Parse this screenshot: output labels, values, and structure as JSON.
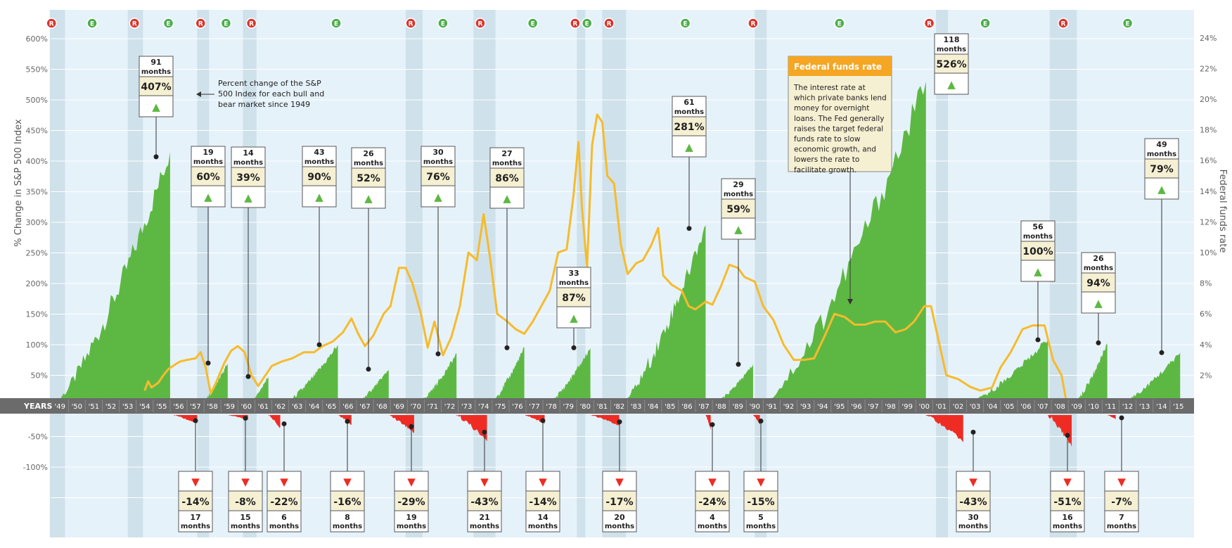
{
  "chart_data": {
    "type": "area",
    "xlabel": "YEARS",
    "ylabel": "% Change in S&P 500 Index",
    "y2label": "Federal funds rate",
    "ylim": [
      -150,
      630
    ],
    "y2lim": [
      0,
      24.9
    ],
    "y_ticks": [
      "600%",
      "550%",
      "500%",
      "450%",
      "400%",
      "350%",
      "300%",
      "250%",
      "200%",
      "150%",
      "100%",
      "50%",
      "-50%",
      "-100%"
    ],
    "y_tick_values": [
      600,
      550,
      500,
      450,
      400,
      350,
      300,
      250,
      200,
      150,
      100,
      50,
      -50,
      -100
    ],
    "y2_ticks": [
      "24%",
      "22%",
      "20%",
      "18%",
      "16%",
      "14%",
      "12%",
      "10%",
      "8%",
      "6%",
      "4%",
      "2%"
    ],
    "y2_tick_values": [
      24,
      22,
      20,
      18,
      16,
      14,
      12,
      10,
      8,
      6,
      4,
      2
    ],
    "x_ticks": [
      "'49",
      "'50",
      "'51",
      "'52",
      "'53",
      "'54",
      "'55",
      "'56",
      "'57",
      "'58",
      "'59",
      "'60",
      "'61",
      "'62",
      "'63",
      "'64",
      "'65",
      "'66",
      "'67",
      "'68",
      "'69",
      "'70",
      "'71",
      "'72",
      "'73",
      "'74",
      "'75",
      "'76",
      "'77",
      "'78",
      "'79",
      "'80",
      "'81",
      "'82",
      "'83",
      "'84",
      "'85",
      "'86",
      "'87",
      "'88",
      "'89",
      "'90",
      "'91",
      "'92",
      "'93",
      "'94",
      "'95",
      "'96",
      "'97",
      "'98",
      "'99",
      "'00",
      "'01",
      "'02",
      "'03",
      "'04",
      "'05",
      "'06",
      "'07",
      "'08",
      "'09",
      "'10",
      "'11",
      "'12",
      "'13",
      "'14",
      "'15"
    ],
    "recession_periods": [
      [
        1948.9,
        1949.8
      ],
      [
        1953.5,
        1954.4
      ],
      [
        1957.6,
        1958.3
      ],
      [
        1960.3,
        1961.1
      ],
      [
        1969.9,
        1970.9
      ],
      [
        1973.9,
        1975.2
      ],
      [
        1980.0,
        1980.5
      ],
      [
        1981.5,
        1982.9
      ],
      [
        1990.5,
        1991.2
      ],
      [
        2001.2,
        2001.9
      ],
      [
        2007.9,
        2009.5
      ]
    ],
    "economy_markers": [
      {
        "label": "R",
        "x": 1949.0
      },
      {
        "label": "E",
        "x": 1951.4
      },
      {
        "label": "R",
        "x": 1953.9
      },
      {
        "label": "E",
        "x": 1955.9
      },
      {
        "label": "R",
        "x": 1957.8
      },
      {
        "label": "E",
        "x": 1959.3
      },
      {
        "label": "R",
        "x": 1960.8
      },
      {
        "label": "E",
        "x": 1965.8
      },
      {
        "label": "R",
        "x": 1970.2
      },
      {
        "label": "E",
        "x": 1972.1
      },
      {
        "label": "R",
        "x": 1974.3
      },
      {
        "label": "E",
        "x": 1977.4
      },
      {
        "label": "R",
        "x": 1979.9
      },
      {
        "label": "E",
        "x": 1980.6
      },
      {
        "label": "R",
        "x": 1981.9
      },
      {
        "label": "E",
        "x": 1986.4
      },
      {
        "label": "R",
        "x": 1990.4
      },
      {
        "label": "E",
        "x": 1995.5
      },
      {
        "label": "R",
        "x": 2000.8
      },
      {
        "label": "E",
        "x": 2004.1
      },
      {
        "label": "R",
        "x": 2008.7
      },
      {
        "label": "E",
        "x": 2012.5
      }
    ],
    "bull_markets": [
      {
        "start": 1949.0,
        "end": 1956.0,
        "peak": 415,
        "marker": 407,
        "months": "91",
        "change": "407%"
      },
      {
        "start": 1957.7,
        "end": 1959.4,
        "peak": 70,
        "marker": 70,
        "months": "19",
        "change": "60%"
      },
      {
        "start": 1960.5,
        "end": 1961.8,
        "peak": 48,
        "marker": 48,
        "months": "14",
        "change": "39%"
      },
      {
        "start": 1962.5,
        "end": 1965.9,
        "peak": 100,
        "marker": 100,
        "months": "43",
        "change": "90%"
      },
      {
        "start": 1966.7,
        "end": 1968.9,
        "peak": 60,
        "marker": 60,
        "months": "26",
        "change": "52%"
      },
      {
        "start": 1970.4,
        "end": 1972.9,
        "peak": 85,
        "marker": 85,
        "months": "30",
        "change": "76%"
      },
      {
        "start": 1974.7,
        "end": 1976.9,
        "peak": 95,
        "marker": 95,
        "months": "27",
        "change": "86%"
      },
      {
        "start": 1978.1,
        "end": 1980.8,
        "peak": 95,
        "marker": 95,
        "months": "33",
        "change": "87%"
      },
      {
        "start": 1982.5,
        "end": 1987.6,
        "peak": 295,
        "marker": 290,
        "months": "61",
        "change": "281%"
      },
      {
        "start": 1987.9,
        "end": 1990.4,
        "peak": 68,
        "marker": 68,
        "months": "29",
        "change": "59%"
      },
      {
        "start": 1990.8,
        "end": 2000.6,
        "peak": 530,
        "marker": 520,
        "months": "118",
        "change": "526%"
      },
      {
        "start": 2002.8,
        "end": 2007.8,
        "peak": 110,
        "marker": 108,
        "months": "56",
        "change": "100%"
      },
      {
        "start": 2009.2,
        "end": 2011.3,
        "peak": 103,
        "marker": 103,
        "months": "26",
        "change": "94%"
      },
      {
        "start": 2011.8,
        "end": 2015.6,
        "peak": 87,
        "marker": 87,
        "months": "49",
        "change": "79%"
      }
    ],
    "bear_markets": [
      {
        "start": 1956.2,
        "end": 1957.6,
        "trough": -14,
        "months": "17",
        "change": "-14%"
      },
      {
        "start": 1959.4,
        "end": 1960.6,
        "trough": -8,
        "months": "15",
        "change": "-8%"
      },
      {
        "start": 1961.8,
        "end": 1962.5,
        "trough": -22,
        "months": "6",
        "change": "-22%"
      },
      {
        "start": 1965.9,
        "end": 1966.7,
        "trough": -16,
        "months": "8",
        "change": "-16%"
      },
      {
        "start": 1968.9,
        "end": 1970.4,
        "trough": -29,
        "months": "19",
        "change": "-29%"
      },
      {
        "start": 1972.9,
        "end": 1974.7,
        "trough": -43,
        "months": "21",
        "change": "-43%"
      },
      {
        "start": 1976.9,
        "end": 1978.1,
        "trough": -14,
        "months": "14",
        "change": "-14%"
      },
      {
        "start": 1980.8,
        "end": 1982.5,
        "trough": -17,
        "months": "20",
        "change": "-17%"
      },
      {
        "start": 1987.6,
        "end": 1987.9,
        "trough": -24,
        "months": "4",
        "change": "-24%"
      },
      {
        "start": 1990.4,
        "end": 1990.8,
        "trough": -15,
        "months": "5",
        "change": "-15%"
      },
      {
        "start": 2000.6,
        "end": 2002.8,
        "trough": -43,
        "months": "30",
        "change": "-43%"
      },
      {
        "start": 2007.8,
        "end": 2009.2,
        "trough": -51,
        "months": "16",
        "change": "-51%"
      },
      {
        "start": 2011.3,
        "end": 2011.8,
        "trough": -7,
        "months": "7",
        "change": "-7%"
      }
    ],
    "fed_funds_rate": [
      [
        1954.5,
        1.0
      ],
      [
        1954.7,
        1.6
      ],
      [
        1954.9,
        1.2
      ],
      [
        1955.3,
        1.5
      ],
      [
        1955.6,
        2.0
      ],
      [
        1955.9,
        2.4
      ],
      [
        1956.3,
        2.7
      ],
      [
        1956.6,
        2.9
      ],
      [
        1957.0,
        3.0
      ],
      [
        1957.5,
        3.1
      ],
      [
        1957.8,
        3.5
      ],
      [
        1958.1,
        2.5
      ],
      [
        1958.4,
        0.8
      ],
      [
        1958.7,
        1.5
      ],
      [
        1959.2,
        2.8
      ],
      [
        1959.6,
        3.6
      ],
      [
        1960.0,
        3.9
      ],
      [
        1960.4,
        3.5
      ],
      [
        1960.8,
        2.0
      ],
      [
        1961.2,
        1.3
      ],
      [
        1961.5,
        1.8
      ],
      [
        1962.0,
        2.6
      ],
      [
        1962.6,
        2.9
      ],
      [
        1963.2,
        3.1
      ],
      [
        1963.9,
        3.5
      ],
      [
        1964.5,
        3.5
      ],
      [
        1965.0,
        3.9
      ],
      [
        1965.6,
        4.2
      ],
      [
        1966.2,
        4.8
      ],
      [
        1966.7,
        5.7
      ],
      [
        1967.1,
        4.7
      ],
      [
        1967.5,
        3.9
      ],
      [
        1968.0,
        4.6
      ],
      [
        1968.6,
        6.0
      ],
      [
        1969.0,
        6.5
      ],
      [
        1969.5,
        9.0
      ],
      [
        1969.9,
        9.0
      ],
      [
        1970.3,
        8.0
      ],
      [
        1970.8,
        6.0
      ],
      [
        1971.2,
        3.8
      ],
      [
        1971.6,
        5.5
      ],
      [
        1972.1,
        3.3
      ],
      [
        1972.6,
        4.5
      ],
      [
        1973.1,
        6.5
      ],
      [
        1973.6,
        10.0
      ],
      [
        1974.1,
        9.5
      ],
      [
        1974.5,
        12.5
      ],
      [
        1974.9,
        9.5
      ],
      [
        1975.3,
        6.0
      ],
      [
        1975.9,
        5.5
      ],
      [
        1976.4,
        5.0
      ],
      [
        1976.9,
        4.7
      ],
      [
        1977.4,
        5.5
      ],
      [
        1977.9,
        6.5
      ],
      [
        1978.4,
        7.5
      ],
      [
        1978.9,
        10.0
      ],
      [
        1979.4,
        10.2
      ],
      [
        1979.8,
        13.7
      ],
      [
        1980.1,
        17.2
      ],
      [
        1980.3,
        13.0
      ],
      [
        1980.6,
        9.0
      ],
      [
        1980.9,
        17.0
      ],
      [
        1981.2,
        19.0
      ],
      [
        1981.5,
        18.5
      ],
      [
        1981.8,
        15.0
      ],
      [
        1982.2,
        14.5
      ],
      [
        1982.6,
        10.5
      ],
      [
        1983.0,
        8.6
      ],
      [
        1983.5,
        9.3
      ],
      [
        1983.9,
        9.5
      ],
      [
        1984.4,
        10.5
      ],
      [
        1984.8,
        11.6
      ],
      [
        1985.1,
        8.5
      ],
      [
        1985.6,
        7.9
      ],
      [
        1986.2,
        7.5
      ],
      [
        1986.6,
        6.5
      ],
      [
        1987.0,
        6.3
      ],
      [
        1987.6,
        6.8
      ],
      [
        1988.0,
        6.6
      ],
      [
        1988.5,
        7.8
      ],
      [
        1989.0,
        9.2
      ],
      [
        1989.5,
        9.0
      ],
      [
        1989.9,
        8.4
      ],
      [
        1990.5,
        8.1
      ],
      [
        1991.0,
        6.5
      ],
      [
        1991.6,
        5.6
      ],
      [
        1992.2,
        4.0
      ],
      [
        1992.8,
        3.0
      ],
      [
        1993.4,
        3.0
      ],
      [
        1994.0,
        3.1
      ],
      [
        1994.6,
        4.5
      ],
      [
        1995.2,
        6.0
      ],
      [
        1995.8,
        5.8
      ],
      [
        1996.4,
        5.3
      ],
      [
        1997.0,
        5.3
      ],
      [
        1997.6,
        5.5
      ],
      [
        1998.2,
        5.5
      ],
      [
        1998.8,
        4.8
      ],
      [
        1999.4,
        5.0
      ],
      [
        1999.9,
        5.5
      ],
      [
        2000.5,
        6.5
      ],
      [
        2000.9,
        6.5
      ],
      [
        2001.3,
        4.5
      ],
      [
        2001.8,
        2.0
      ],
      [
        2002.5,
        1.75
      ],
      [
        2003.2,
        1.25
      ],
      [
        2003.8,
        1.0
      ],
      [
        2004.5,
        1.2
      ],
      [
        2005.0,
        2.5
      ],
      [
        2005.6,
        3.5
      ],
      [
        2006.3,
        5.0
      ],
      [
        2006.9,
        5.25
      ],
      [
        2007.6,
        5.25
      ],
      [
        2008.1,
        3.0
      ],
      [
        2008.6,
        2.0
      ],
      [
        2008.9,
        0.2
      ],
      [
        2009.5,
        0.15
      ],
      [
        2010.5,
        0.18
      ],
      [
        2012.0,
        0.12
      ],
      [
        2014.0,
        0.1
      ],
      [
        2015.5,
        0.14
      ],
      [
        2015.9,
        0.35
      ]
    ],
    "annotations": {
      "callout": "Percent change of the S&P 500 Index for each bull and bear market since 1949",
      "fed_box_title": "Federal funds rate",
      "fed_box_text": "The interest rate at which private banks lend money for overnight loans. The Fed generally raises the target federal funds rate to slow economic growth, and lowers the rate to facilitate growth."
    }
  },
  "labels": {
    "months_word": "months",
    "up_arrow": "▲",
    "down_arrow": "▼"
  },
  "colors": {
    "background": "#e6f2fa",
    "recession_band": "#cfe1eb",
    "bull": "#5db843",
    "bear": "#ee2c24",
    "fed_line": "#f6bb2c",
    "years_bar": "#6b6b6b",
    "box_fill": "#f6f0d3",
    "fed_box_header": "#f5a623",
    "recession_marker": "#d9342b",
    "expansion_marker": "#4cae4c"
  }
}
